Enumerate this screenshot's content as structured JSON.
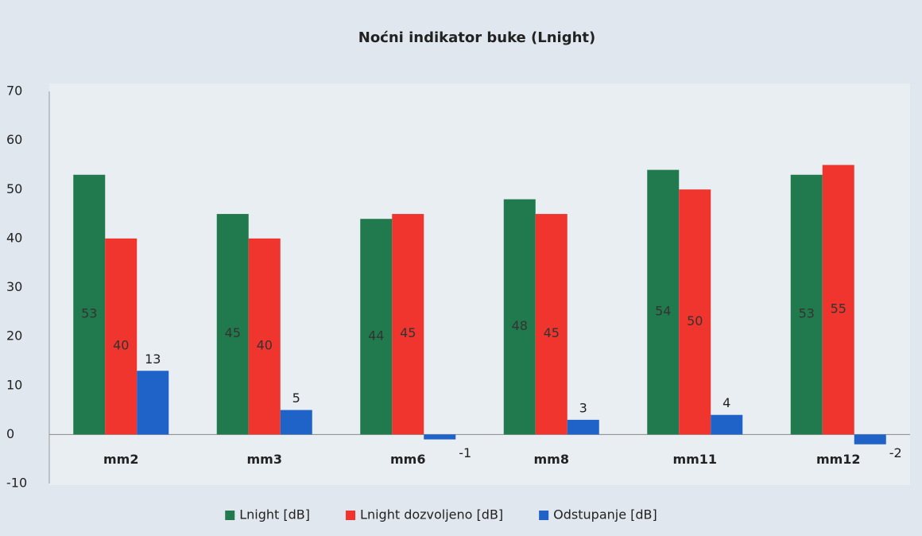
{
  "chart_data": {
    "type": "bar",
    "title": "Noćni indikator buke (Lnight)",
    "categories": [
      "mm2",
      "mm3",
      "mm6",
      "mm8",
      "mm11",
      "mm12"
    ],
    "series": [
      {
        "name": "Lnight [dB]",
        "color": "#217a4d",
        "values": [
          53,
          45,
          44,
          48,
          54,
          53
        ]
      },
      {
        "name": "Lnight dozvoljeno [dB]",
        "color": "#f0352e",
        "values": [
          40,
          40,
          45,
          45,
          50,
          55
        ]
      },
      {
        "name": "Odstupanje [dB]",
        "color": "#1f62c8",
        "values": [
          13,
          5,
          -1,
          3,
          4,
          -2
        ]
      }
    ],
    "ylim": [
      -10,
      70
    ],
    "yticks": [
      -10,
      0,
      10,
      20,
      30,
      40,
      50,
      60,
      70
    ],
    "grid": false,
    "legend": "bottom"
  }
}
